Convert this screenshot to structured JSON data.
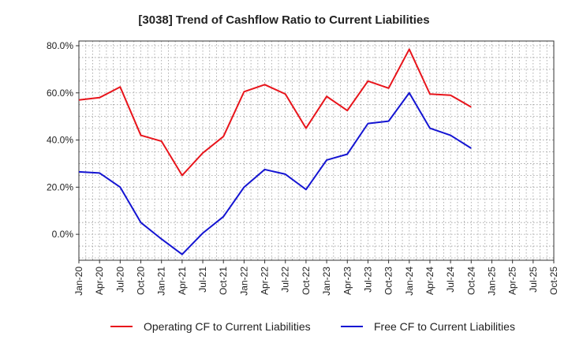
{
  "chart_data": {
    "type": "line",
    "title": "[3038]  Trend of Cashflow Ratio to Current Liabilities",
    "xlabel": "",
    "ylabel": "",
    "ylim": [
      -11,
      82
    ],
    "yticks": [
      0,
      20,
      40,
      60,
      80
    ],
    "ytick_labels": [
      "0.0%",
      "20.0%",
      "40.0%",
      "60.0%",
      "80.0%"
    ],
    "xtick_labels": [
      "Jan-20",
      "Apr-20",
      "Jul-20",
      "Oct-20",
      "Jan-21",
      "Apr-21",
      "Jul-21",
      "Oct-21",
      "Jan-22",
      "Apr-22",
      "Jul-22",
      "Oct-22",
      "Jan-23",
      "Apr-23",
      "Jul-23",
      "Oct-23",
      "Jan-24",
      "Apr-24",
      "Jul-24",
      "Oct-24",
      "Jan-25",
      "Apr-25",
      "Jul-25",
      "Oct-25"
    ],
    "x": [
      "Jan-20",
      "Apr-20",
      "Jul-20",
      "Oct-20",
      "Jan-21",
      "Apr-21",
      "Jul-21",
      "Oct-21",
      "Jan-22",
      "Apr-22",
      "Jul-22",
      "Oct-22",
      "Jan-23",
      "Apr-23",
      "Jul-23",
      "Oct-23",
      "Jan-24",
      "Apr-24",
      "Jul-24",
      "Oct-24"
    ],
    "grid": true,
    "legend_position": "bottom",
    "series": [
      {
        "name": "Operating CF to Current Liabilities",
        "color": "#e8141b",
        "values": [
          57.0,
          58.0,
          62.5,
          42.0,
          39.5,
          25.0,
          34.5,
          41.5,
          60.5,
          63.5,
          59.5,
          45.0,
          58.5,
          52.5,
          65.0,
          62.0,
          78.5,
          59.5,
          59.0,
          54.0
        ]
      },
      {
        "name": "Free CF to Current Liabilities",
        "color": "#1414d2",
        "values": [
          26.5,
          26.0,
          20.0,
          5.0,
          -2.0,
          -8.5,
          0.5,
          7.5,
          20.0,
          27.5,
          25.5,
          19.0,
          31.5,
          34.0,
          47.0,
          48.0,
          60.0,
          45.0,
          42.0,
          36.5
        ]
      }
    ]
  }
}
